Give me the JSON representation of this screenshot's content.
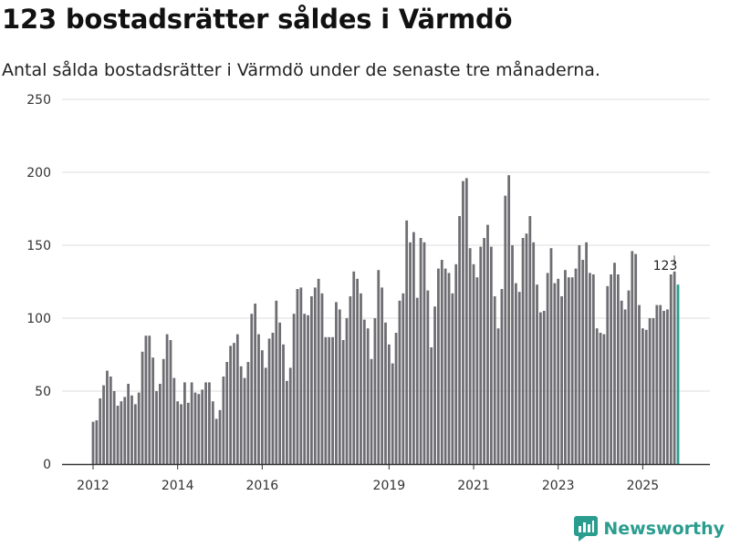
{
  "title": "123 bostadsrätter såldes i Värmdö",
  "subtitle": "Antal sålda bostadsrätter i Värmdö under de senaste tre månaderna.",
  "brand": {
    "name": "Newsworthy",
    "icon": "newsworthy-logo-icon"
  },
  "colors": {
    "bar": "#6e6d72",
    "highlight": "#2a9d8f",
    "grid": "#dcdcdc",
    "axis": "#333333"
  },
  "chart_data": {
    "type": "bar",
    "title": "123 bostadsrätter såldes i Värmdö",
    "xlabel": "",
    "ylabel": "",
    "ylim": [
      0,
      250
    ],
    "yticks": [
      "0",
      "50",
      "100",
      "150",
      "200",
      "250"
    ],
    "xticks": [
      {
        "label": "2012",
        "index": 0
      },
      {
        "label": "2014",
        "index": 24
      },
      {
        "label": "2016",
        "index": 48
      },
      {
        "label": "2019",
        "index": 84
      },
      {
        "label": "2021",
        "index": 108
      },
      {
        "label": "2023",
        "index": 132
      },
      {
        "label": "2025",
        "index": 156
      }
    ],
    "last_value_label": "123",
    "values": [
      29,
      30,
      45,
      54,
      64,
      60,
      50,
      40,
      43,
      46,
      55,
      47,
      41,
      49,
      77,
      88,
      88,
      73,
      50,
      55,
      72,
      89,
      85,
      59,
      43,
      41,
      56,
      42,
      56,
      49,
      48,
      51,
      56,
      56,
      43,
      31,
      37,
      60,
      70,
      81,
      83,
      89,
      67,
      59,
      70,
      103,
      110,
      89,
      78,
      66,
      86,
      90,
      112,
      97,
      82,
      57,
      66,
      103,
      120,
      121,
      103,
      102,
      115,
      121,
      127,
      117,
      87,
      87,
      87,
      111,
      106,
      85,
      100,
      115,
      132,
      127,
      117,
      99,
      93,
      72,
      100,
      133,
      121,
      97,
      82,
      69,
      90,
      112,
      117,
      167,
      152,
      159,
      114,
      155,
      152,
      119,
      80,
      108,
      134,
      140,
      134,
      131,
      117,
      137,
      170,
      194,
      196,
      148,
      137,
      128,
      149,
      155,
      164,
      149,
      115,
      93,
      120,
      184,
      198,
      150,
      124,
      118,
      155,
      158,
      170,
      152,
      123,
      104,
      105,
      131,
      148,
      124,
      127,
      115,
      133,
      128,
      128,
      134,
      150,
      140,
      152,
      131,
      130,
      93,
      90,
      89,
      122,
      130,
      138,
      130,
      112,
      106,
      119,
      146,
      144,
      109,
      93,
      92,
      100,
      100,
      109,
      109,
      105,
      106,
      130,
      132,
      123
    ]
  }
}
